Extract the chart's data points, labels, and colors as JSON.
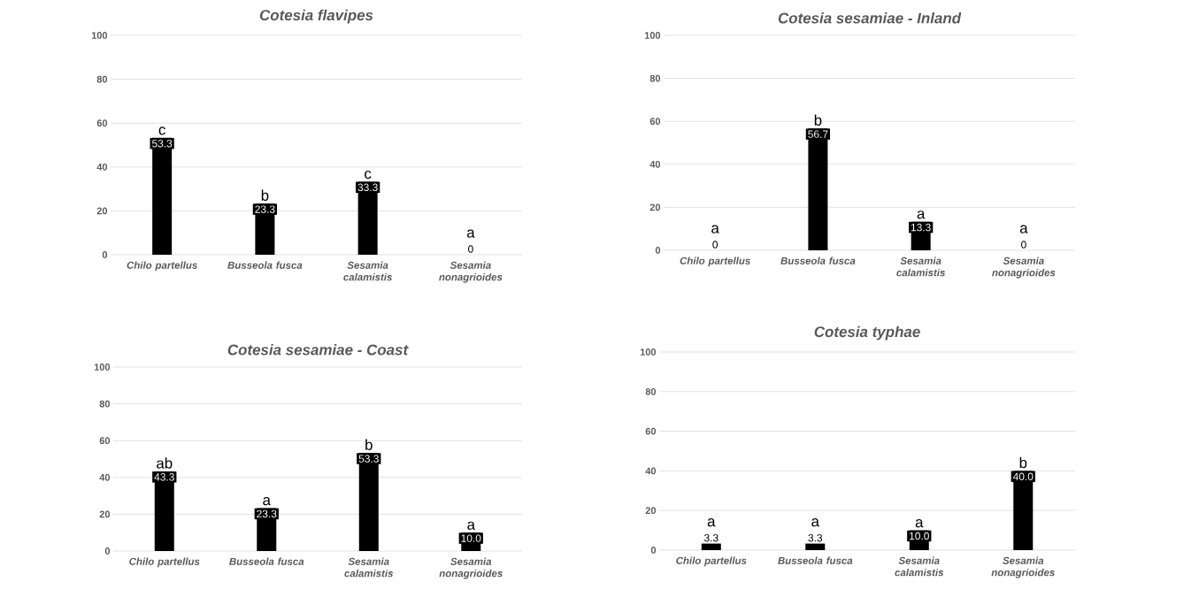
{
  "chart_data": [
    {
      "type": "bar",
      "title": "*Cotesia flavipes*",
      "categories": [
        "Chilo partellus",
        "Busseola fusca",
        "Sesamia calamistis",
        "Sesamia nonagrioides"
      ],
      "values": [
        53.3,
        23.3,
        33.3,
        0
      ],
      "value_labels": [
        "53.3",
        "23.3",
        "33.3",
        "0"
      ],
      "color": "#000000",
      "ylim": [
        0,
        100
      ],
      "yticks": [
        0,
        20,
        40,
        60,
        80,
        100
      ],
      "grid": "y",
      "annotations": [
        "c",
        "b",
        "c",
        "a"
      ]
    },
    {
      "type": "bar",
      "title": "*Cotesia sesamiae - Inland*",
      "categories": [
        "Chilo partellus",
        "Busseola fusca",
        "Sesamia calamistis",
        "Sesamia nonagrioides"
      ],
      "values": [
        0,
        56.7,
        13.3,
        0
      ],
      "value_labels": [
        "0",
        "56.7",
        "13.3",
        "0"
      ],
      "color": "#000000",
      "ylim": [
        0,
        100
      ],
      "yticks": [
        0,
        20,
        40,
        60,
        80,
        100
      ],
      "grid": "y",
      "annotations": [
        "a",
        "b",
        "a",
        "a"
      ]
    },
    {
      "type": "bar",
      "title": "*Cotesia sesamiae - Coast*",
      "categories": [
        "Chilo partellus",
        "Busseola fusca",
        "Sesamia calamistis",
        "Sesamia nonagrioides"
      ],
      "values": [
        43.3,
        23.3,
        53.3,
        10.0
      ],
      "value_labels": [
        "43.3",
        "23.3",
        "53.3",
        "10.0"
      ],
      "color": "#000000",
      "ylim": [
        0,
        100
      ],
      "yticks": [
        0,
        20,
        40,
        60,
        80,
        100
      ],
      "grid": "y",
      "annotations": [
        "ab",
        "a",
        "b",
        "a"
      ]
    },
    {
      "type": "bar",
      "title": "*Cotesia typhae*",
      "categories": [
        "Chilo partellus",
        "Busseola fusca",
        "Sesamia calamistis",
        "Sesamia nonagrioides"
      ],
      "values": [
        3.3,
        3.3,
        10.0,
        40.0
      ],
      "value_labels": [
        "3.3",
        "3.3",
        "10.0",
        "40.0"
      ],
      "color": "#000000",
      "ylim": [
        0,
        100
      ],
      "yticks": [
        0,
        20,
        40,
        60,
        80,
        100
      ],
      "grid": "y",
      "annotations": [
        "a",
        "a",
        "a",
        "b"
      ]
    }
  ]
}
